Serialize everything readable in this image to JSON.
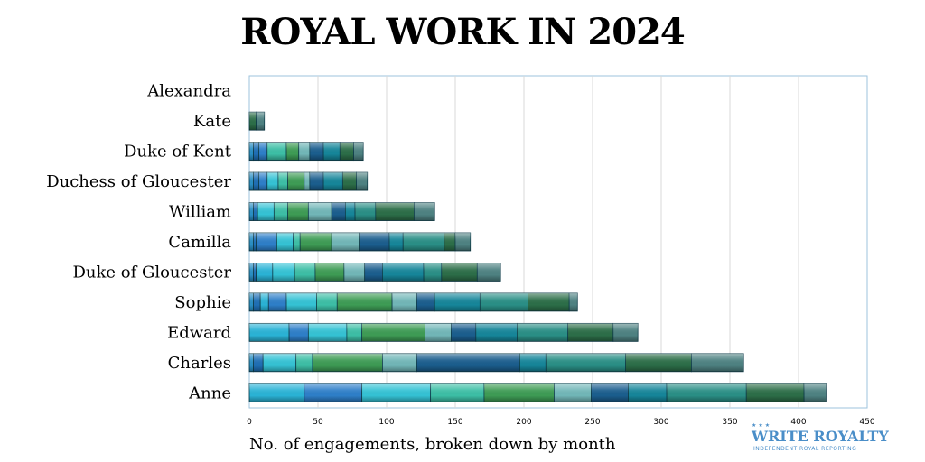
{
  "chart_data": {
    "type": "bar",
    "orientation": "horizontal",
    "stacked": true,
    "title": "ROYAL WORK IN 2024",
    "xlabel": "No. of engagements, broken down by month",
    "ylabel": "",
    "xlim": [
      0,
      450
    ],
    "x_ticks": [
      0,
      50,
      100,
      150,
      200,
      250,
      300,
      350,
      400,
      450
    ],
    "grid": "vertical",
    "categories": [
      "Alexandra",
      "Kate",
      "Duke of Kent",
      "Duchess of Gloucester",
      "William",
      "Camilla",
      "Duke of Gloucester",
      "Sophie",
      "Edward",
      "Charles",
      "Anne"
    ],
    "series": [
      {
        "color": "#2a8fc4",
        "values": [
          0,
          0,
          3,
          3,
          3,
          3,
          3,
          3,
          0,
          3,
          0
        ]
      },
      {
        "color": "#1f6fb5",
        "values": [
          0,
          0,
          4,
          4,
          3,
          2,
          2,
          5,
          0,
          7,
          0
        ]
      },
      {
        "color": "#2ab3d6",
        "values": [
          0,
          0,
          0,
          0,
          0,
          0,
          12,
          6,
          29,
          0,
          40
        ]
      },
      {
        "color": "#2e7fc9",
        "values": [
          0,
          0,
          6,
          6,
          0,
          15,
          0,
          13,
          14,
          0,
          42
        ]
      },
      {
        "color": "#35c3d5",
        "values": [
          0,
          0,
          0,
          8,
          12,
          12,
          16,
          22,
          28,
          24,
          50
        ]
      },
      {
        "color": "#3dbfa6",
        "values": [
          0,
          0,
          14,
          7,
          10,
          5,
          15,
          15,
          11,
          12,
          39
        ]
      },
      {
        "color": "#3e9c55",
        "values": [
          0,
          0,
          9,
          12,
          15,
          23,
          21,
          40,
          46,
          51,
          51
        ]
      },
      {
        "color": "#72b7b8",
        "values": [
          0,
          0,
          8,
          4,
          17,
          20,
          15,
          18,
          19,
          25,
          27
        ]
      },
      {
        "color": "#1b5e8e",
        "values": [
          0,
          0,
          10,
          10,
          10,
          22,
          13,
          13,
          18,
          75,
          27
        ]
      },
      {
        "color": "#16869a",
        "values": [
          0,
          0,
          12,
          14,
          7,
          10,
          30,
          33,
          30,
          19,
          28
        ]
      },
      {
        "color": "#2a8f86",
        "values": [
          0,
          0,
          0,
          0,
          15,
          30,
          13,
          35,
          37,
          58,
          58
        ]
      },
      {
        "color": "#2c6e48",
        "values": [
          0,
          5,
          10,
          10,
          28,
          8,
          26,
          30,
          33,
          48,
          42
        ]
      },
      {
        "color": "#4e8282",
        "values": [
          0,
          6,
          7,
          8,
          15,
          11,
          17,
          6,
          18,
          38,
          16
        ]
      }
    ]
  },
  "logo": {
    "name": "WRITE ROYALTY",
    "tagline": "INDEPENDENT ROYAL REPORTING"
  }
}
